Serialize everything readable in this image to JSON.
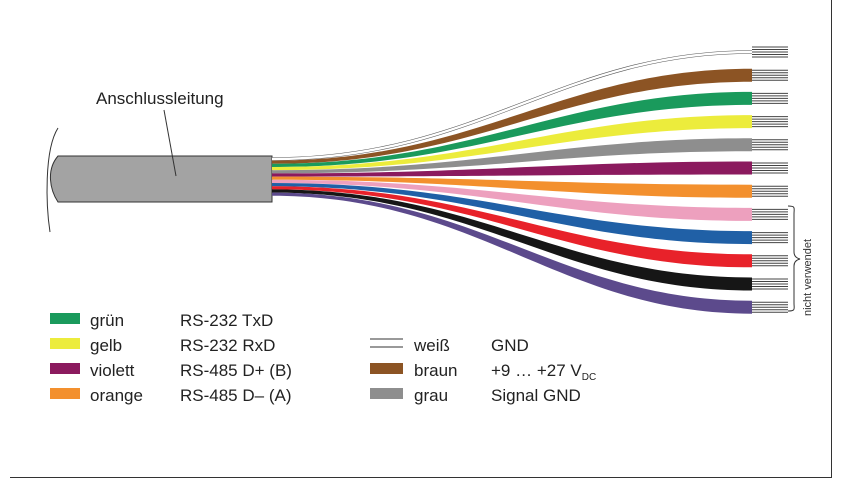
{
  "cable_label": "Anschlussleitung",
  "unused_label": "nicht verwendet",
  "wires": [
    {
      "color": "#ffffff",
      "outline": "#555555"
    },
    {
      "color": "#8c5424"
    },
    {
      "color": "#1a9a5c"
    },
    {
      "color": "#ecec3c"
    },
    {
      "color": "#8e8e8e"
    },
    {
      "color": "#8b1a5e"
    },
    {
      "color": "#f3902e"
    },
    {
      "color": "#eda0be"
    },
    {
      "color": "#2060a6"
    },
    {
      "color": "#e8222a"
    },
    {
      "color": "#161616"
    },
    {
      "color": "#5c4a8c"
    }
  ],
  "legend_left": [
    {
      "color": "#1a9a5c",
      "name": "grün",
      "signal": "RS-232 TxD"
    },
    {
      "color": "#ecec3c",
      "name": "gelb",
      "signal": "RS-232 RxD"
    },
    {
      "color": "#8b1a5e",
      "name": "violett",
      "signal": "RS-485 D+ (B)"
    },
    {
      "color": "#f3902e",
      "name": "orange",
      "signal": "RS-485 D– (A)"
    }
  ],
  "legend_right": [
    {
      "color": "#ffffff",
      "outline": true,
      "name": "weiß",
      "signal": "GND"
    },
    {
      "color": "#8c5424",
      "name": "braun",
      "signal": "+9 … +27 V",
      "sub": "DC"
    },
    {
      "color": "#8e8e8e",
      "name": "grau",
      "signal": "Signal GND"
    }
  ]
}
